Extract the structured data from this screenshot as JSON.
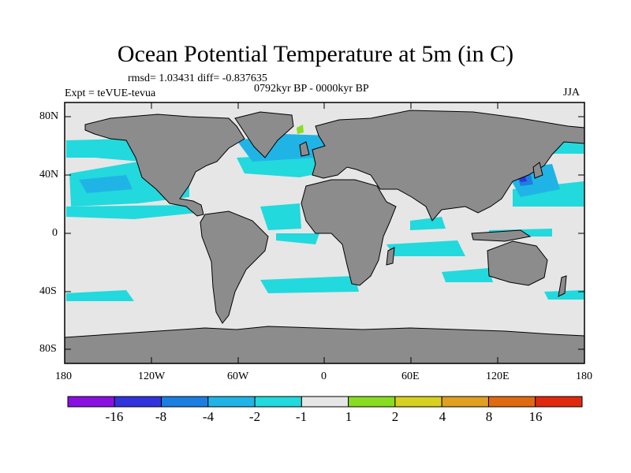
{
  "title": "Ocean Potential Temperature at 5m (in C)",
  "stats": "rmsd= 1.03431 diff= -0.837635",
  "experiment": "Expt = teVUE-tevua",
  "period": "0792kyr BP - 0000kyr BP",
  "season": "JJA",
  "y_ticks": [
    "80N",
    "40N",
    "0",
    "40S",
    "80S"
  ],
  "x_ticks": [
    "180",
    "120W",
    "60W",
    "0",
    "60E",
    "120E",
    "180"
  ],
  "colorbar": {
    "labels": [
      "-16",
      "-8",
      "-4",
      "-2",
      "-1",
      "1",
      "2",
      "4",
      "8",
      "16"
    ],
    "colors": [
      "#8a10e0",
      "#3333dd",
      "#1a7fe0",
      "#20b4e6",
      "#22d9dd",
      "#e6e6e6",
      "#88dd22",
      "#d8d020",
      "#e0a020",
      "#e06a10",
      "#e02a10"
    ]
  },
  "colors": {
    "ocean": "#e6e6e6",
    "land": "#8c8c8c",
    "frame": "#000000"
  }
}
